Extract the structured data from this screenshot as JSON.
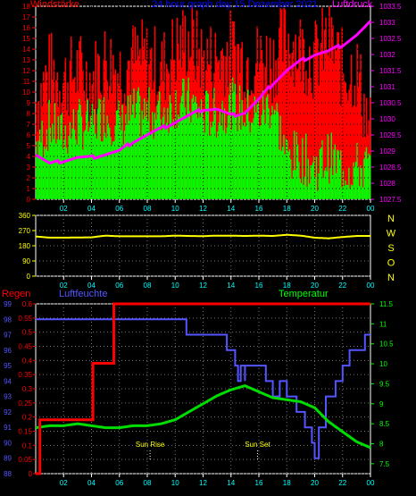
{
  "chart_data": [
    {
      "type": "bar",
      "title": "24 hour graph day  15 Dezember 2021",
      "left_label": "Windstärke",
      "right_label": "Luftdruck",
      "x_ticks": [
        "02",
        "04",
        "06",
        "08",
        "10",
        "12",
        "14",
        "16",
        "18",
        "20",
        "22",
        "00"
      ],
      "y_left_ticks": [
        0,
        1,
        2,
        3,
        4,
        5,
        6,
        7,
        8,
        9,
        10,
        11,
        12,
        13,
        14,
        15,
        16,
        17,
        18
      ],
      "y_right_ticks": [
        1027.5,
        1028,
        1028.5,
        1029,
        1029.5,
        1030,
        1030.5,
        1031,
        1031.5,
        1032,
        1032.5,
        1033,
        1033.5
      ],
      "y_left_range": [
        0,
        18
      ],
      "y_right_range": [
        1027.5,
        1033.5
      ],
      "series": [
        {
          "color": "#ff0000",
          "kind": "gust",
          "x_hours": [
            0,
            1,
            2,
            3,
            4,
            5,
            6,
            7,
            8,
            9,
            10,
            11,
            12,
            13,
            14,
            15,
            16,
            17,
            18,
            19,
            20,
            21,
            22,
            23,
            24
          ],
          "values": [
            9,
            12,
            11,
            12,
            11,
            13,
            12,
            13,
            13,
            12,
            14,
            15,
            13,
            13,
            14,
            13,
            13,
            13,
            15,
            14,
            13,
            15,
            12,
            12,
            6
          ]
        },
        {
          "color": "#00ff00",
          "kind": "wind",
          "x_hours": [
            0,
            1,
            2,
            3,
            4,
            5,
            6,
            7,
            8,
            9,
            10,
            11,
            12,
            13,
            14,
            15,
            16,
            17,
            18,
            19,
            20,
            21,
            22,
            23,
            24
          ],
          "values": [
            5,
            7,
            6,
            7,
            7,
            8,
            7,
            8,
            8,
            8,
            9,
            9,
            8,
            8,
            9,
            8,
            8,
            9,
            4,
            4,
            3,
            4,
            3,
            3,
            3
          ]
        },
        {
          "color": "#ff00ff",
          "kind": "pressure",
          "x_hours": [
            0,
            1,
            2,
            3,
            4,
            5,
            6,
            7,
            8,
            9,
            10,
            11,
            12,
            13,
            14,
            15,
            16,
            17,
            18,
            19,
            20,
            21,
            22,
            23,
            24
          ],
          "values": [
            1028.9,
            1028.6,
            1028.7,
            1028.8,
            1028.8,
            1028.9,
            1029.0,
            1029.3,
            1029.5,
            1029.7,
            1029.9,
            1030.1,
            1030.3,
            1030.3,
            1030.1,
            1030.2,
            1030.6,
            1031.1,
            1031.5,
            1031.8,
            1032.0,
            1032.1,
            1032.3,
            1032.6,
            1033.0
          ]
        }
      ]
    },
    {
      "type": "line",
      "y_ticks": [
        0,
        90,
        180,
        270,
        360
      ],
      "y_range": [
        0,
        360
      ],
      "direction_labels": [
        "N",
        "W",
        "S",
        "O",
        "N"
      ],
      "x_ticks": [
        "02",
        "04",
        "06",
        "08",
        "10",
        "12",
        "14",
        "16",
        "18",
        "20",
        "22",
        "00"
      ],
      "series": [
        {
          "color": "#ffff00",
          "x_hours": [
            0,
            1,
            2,
            3,
            4,
            5,
            6,
            7,
            8,
            9,
            10,
            11,
            12,
            13,
            14,
            15,
            16,
            17,
            18,
            19,
            20,
            21,
            22,
            23,
            24
          ],
          "values": [
            235,
            228,
            228,
            229,
            230,
            240,
            236,
            236,
            236,
            236,
            240,
            238,
            237,
            240,
            240,
            238,
            240,
            238,
            245,
            240,
            228,
            224,
            232,
            238,
            238
          ]
        }
      ]
    },
    {
      "type": "line",
      "left_label": "Regen",
      "mid_label": "Luftfeuchte",
      "right_label": "Temperatur",
      "rain_ticks": [
        0,
        0.05,
        0.1,
        0.15,
        0.2,
        0.25,
        0.3,
        0.35,
        0.4,
        0.45,
        0.5,
        0.55,
        0.6
      ],
      "humidity_ticks": [
        88,
        89,
        90,
        91,
        92,
        93,
        94,
        95,
        96,
        97,
        98,
        99
      ],
      "temp_ticks": [
        7.5,
        8,
        8.5,
        9,
        9.5,
        10,
        10.5,
        11,
        11.5
      ],
      "rain_range": [
        0,
        0.6
      ],
      "humidity_range": [
        88,
        99
      ],
      "temp_range": [
        7.25,
        11.5
      ],
      "annotations": [
        {
          "text": "Sun Rise",
          "x_hour": 8.2
        },
        {
          "text": "Sun Set",
          "x_hour": 15.9
        }
      ],
      "x_ticks": [
        "02",
        "04",
        "06",
        "08",
        "10",
        "12",
        "14",
        "16",
        "18",
        "20",
        "22",
        "00"
      ],
      "series": [
        {
          "name": "Regen",
          "color": "#ff0000",
          "x_hours": [
            0,
            0.3,
            0.3,
            4.1,
            4.1,
            5.6,
            5.6,
            24
          ],
          "values": [
            0,
            0,
            0.19,
            0.19,
            0.39,
            0.39,
            0.6,
            0.6
          ]
        },
        {
          "name": "Luftfeuchte",
          "color": "#5555ff",
          "x_hours": [
            0,
            10.8,
            10.8,
            13.7,
            13.7,
            14.3,
            14.5,
            14.7,
            15.0,
            15.0,
            16.5,
            17.0,
            17.5,
            18.0,
            18.7,
            19.3,
            19.8,
            20.0,
            20.3,
            20.8,
            21.5,
            22.0,
            22.5,
            23.0,
            23.6,
            24
          ],
          "values": [
            98,
            98,
            97,
            97,
            96,
            95,
            94,
            95,
            94,
            95,
            94,
            93,
            94,
            93,
            92,
            91,
            90,
            89,
            91,
            93,
            94,
            95,
            96,
            96,
            97,
            97
          ]
        },
        {
          "name": "Temperatur",
          "color": "#00dd00",
          "x_hours": [
            0,
            1,
            2,
            3,
            4,
            5,
            6,
            7,
            8,
            9,
            10,
            11,
            12,
            13,
            14,
            15,
            16,
            17,
            18,
            19,
            20,
            21,
            22,
            23,
            24
          ],
          "values": [
            8.4,
            8.45,
            8.45,
            8.5,
            8.45,
            8.4,
            8.4,
            8.45,
            8.45,
            8.5,
            8.6,
            8.8,
            9.0,
            9.2,
            9.35,
            9.45,
            9.3,
            9.15,
            9.1,
            9.05,
            8.9,
            8.55,
            8.3,
            8.05,
            7.9
          ]
        }
      ]
    }
  ]
}
